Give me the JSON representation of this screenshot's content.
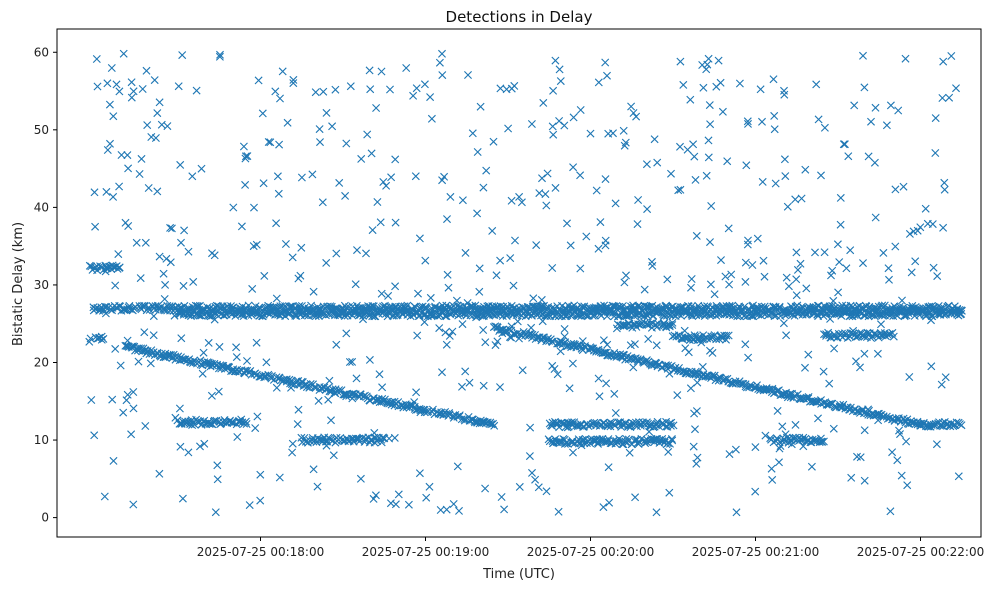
{
  "chart_data": {
    "type": "scatter",
    "title": "Detections in Delay",
    "xlabel": "Time (UTC)",
    "ylabel": "Bistatic Delay (km)",
    "marker": "x",
    "color": "#1f77b4",
    "grid": false,
    "legend": "none",
    "x_tick_labels": [
      "2025-07-25 00:18:00",
      "2025-07-25 00:19:00",
      "2025-07-25 00:20:00",
      "2025-07-25 00:21:00",
      "2025-07-25 00:22:00"
    ],
    "x_tick_seconds": [
      60,
      120,
      180,
      240,
      300
    ],
    "y_ticks": [
      0,
      10,
      20,
      30,
      40,
      50,
      60
    ],
    "xlim": [
      "2025-07-25 00:16:46",
      "2025-07-25 00:22:22"
    ],
    "ylim": [
      -2.5,
      63
    ],
    "tracks": [
      {
        "x_start": "2025-07-25 00:17:11",
        "x_end": "2025-07-25 00:19:25",
        "y_start": 22.0,
        "y_end": 12.0
      },
      {
        "x_start": "2025-07-25 00:19:25",
        "x_end": "2025-07-25 00:22:00",
        "y_start": 24.5,
        "y_end": 12.0
      },
      {
        "x_start": "2025-07-25 00:16:59",
        "x_end": "2025-07-25 00:22:15",
        "y_const": 27.0
      },
      {
        "x_start": "2025-07-25 00:17:30",
        "x_end": "2025-07-25 00:22:15",
        "y_const": 26.3
      },
      {
        "x_start": "2025-07-25 00:16:58",
        "x_end": "2025-07-25 00:17:09",
        "y_const": 32.2
      },
      {
        "x_start": "2025-07-25 00:16:58",
        "x_end": "2025-07-25 00:17:03",
        "y_const": 23.0
      },
      {
        "x_start": "2025-07-25 00:17:30",
        "x_end": "2025-07-25 00:17:55",
        "y_const": 12.3
      },
      {
        "x_start": "2025-07-25 00:18:15",
        "x_end": "2025-07-25 00:18:45",
        "y_const": 10.0
      },
      {
        "x_start": "2025-07-25 00:19:45",
        "x_end": "2025-07-25 00:20:30",
        "y_const": 12.0
      },
      {
        "x_start": "2025-07-25 00:19:45",
        "x_end": "2025-07-25 00:20:30",
        "y_const": 9.8
      },
      {
        "x_start": "2025-07-25 00:20:10",
        "x_end": "2025-07-25 00:20:30",
        "y_const": 24.8
      },
      {
        "x_start": "2025-07-25 00:20:30",
        "x_end": "2025-07-25 00:20:50",
        "y_const": 23.2
      },
      {
        "x_start": "2025-07-25 00:21:25",
        "x_end": "2025-07-25 00:21:50",
        "y_const": 23.5
      },
      {
        "x_start": "2025-07-25 00:21:05",
        "x_end": "2025-07-25 00:21:25",
        "y_const": 10.0
      },
      {
        "x_start": "2025-07-25 00:22:00",
        "x_end": "2025-07-25 00:22:15",
        "y_const": 12.0
      }
    ],
    "clutter": {
      "x_range": [
        "2025-07-25 00:16:58",
        "2025-07-25 00:22:15"
      ],
      "y_range": [
        0.5,
        60
      ],
      "count": 650
    }
  }
}
